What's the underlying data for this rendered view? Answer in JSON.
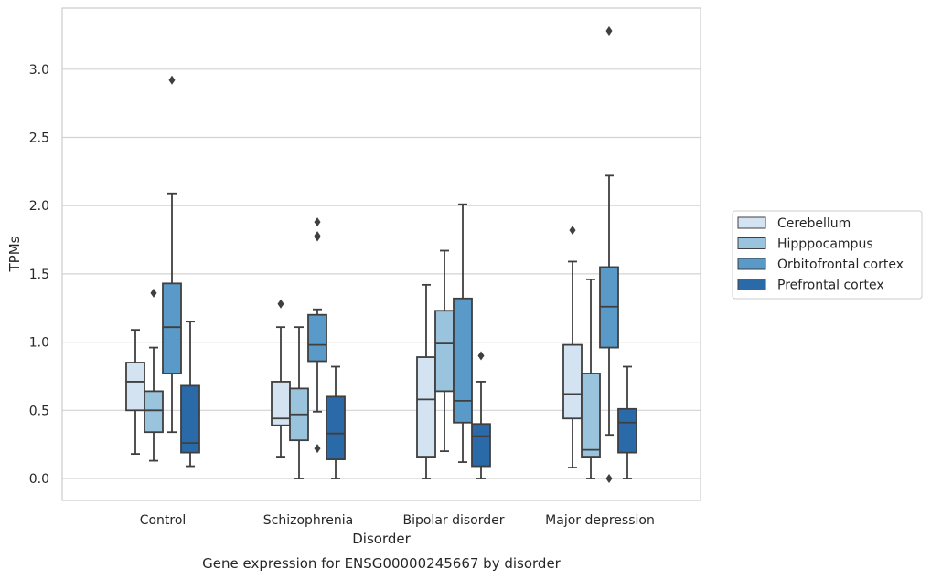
{
  "chart_data": {
    "type": "boxplot",
    "title": "Gene expression for ENSG00000245667 by disorder",
    "xlabel": "Disorder",
    "ylabel": "TPMs",
    "ylim": [
      -0.16,
      3.46
    ],
    "yticks": [
      "0.0",
      "0.5",
      "1.0",
      "1.5",
      "2.0",
      "2.5",
      "3.0"
    ],
    "ytick_values": [
      0,
      0.5,
      1.0,
      1.5,
      2.0,
      2.5,
      3.0
    ],
    "grid": true,
    "legend_position": "right",
    "categories": [
      "Control",
      "Schizophrenia",
      "Bipolar disorder",
      "Major depression"
    ],
    "series": [
      {
        "name": "Cerebellum",
        "color": "#d4e3f2",
        "boxes": [
          {
            "whislo": 0.18,
            "q1": 0.5,
            "med": 0.71,
            "q3": 0.85,
            "whishi": 1.09,
            "fliers": []
          },
          {
            "whislo": 0.16,
            "q1": 0.39,
            "med": 0.44,
            "q3": 0.71,
            "whishi": 1.11,
            "fliers": [
              1.28
            ]
          },
          {
            "whislo": 0.0,
            "q1": 0.16,
            "med": 0.58,
            "q3": 0.89,
            "whishi": 1.42,
            "fliers": []
          },
          {
            "whislo": 0.08,
            "q1": 0.44,
            "med": 0.62,
            "q3": 0.98,
            "whishi": 1.59,
            "fliers": [
              1.82
            ]
          }
        ]
      },
      {
        "name": "Hipppocampus",
        "color": "#9ac3de",
        "boxes": [
          {
            "whislo": 0.13,
            "q1": 0.34,
            "med": 0.5,
            "q3": 0.64,
            "whishi": 0.96,
            "fliers": [
              1.36
            ]
          },
          {
            "whislo": 0.0,
            "q1": 0.28,
            "med": 0.47,
            "q3": 0.66,
            "whishi": 1.11,
            "fliers": []
          },
          {
            "whislo": 0.2,
            "q1": 0.64,
            "med": 0.99,
            "q3": 1.23,
            "whishi": 1.67,
            "fliers": []
          },
          {
            "whislo": 0.0,
            "q1": 0.16,
            "med": 0.21,
            "q3": 0.77,
            "whishi": 1.46,
            "fliers": []
          }
        ]
      },
      {
        "name": "Orbitofrontal cortex",
        "color": "#5a9ac9",
        "boxes": [
          {
            "whislo": 0.34,
            "q1": 0.77,
            "med": 1.11,
            "q3": 1.43,
            "whishi": 2.09,
            "fliers": [
              2.92
            ]
          },
          {
            "whislo": 0.49,
            "q1": 0.86,
            "med": 0.98,
            "q3": 1.2,
            "whishi": 1.24,
            "fliers": [
              0.22,
              1.77,
              1.78,
              1.88
            ]
          },
          {
            "whislo": 0.12,
            "q1": 0.41,
            "med": 0.57,
            "q3": 1.32,
            "whishi": 2.01,
            "fliers": []
          },
          {
            "whislo": 0.32,
            "q1": 0.96,
            "med": 1.26,
            "q3": 1.55,
            "whishi": 2.22,
            "fliers": [
              0.0,
              3.28
            ]
          }
        ]
      },
      {
        "name": "Prefrontal cortex",
        "color": "#2b6aa8",
        "boxes": [
          {
            "whislo": 0.09,
            "q1": 0.19,
            "med": 0.26,
            "q3": 0.68,
            "whishi": 1.15,
            "fliers": []
          },
          {
            "whislo": 0.0,
            "q1": 0.14,
            "med": 0.33,
            "q3": 0.6,
            "whishi": 0.82,
            "fliers": []
          },
          {
            "whislo": 0.0,
            "q1": 0.09,
            "med": 0.31,
            "q3": 0.4,
            "whishi": 0.71,
            "fliers": [
              0.9
            ]
          },
          {
            "whislo": 0.0,
            "q1": 0.19,
            "med": 0.41,
            "q3": 0.51,
            "whishi": 0.82,
            "fliers": []
          }
        ]
      }
    ]
  }
}
